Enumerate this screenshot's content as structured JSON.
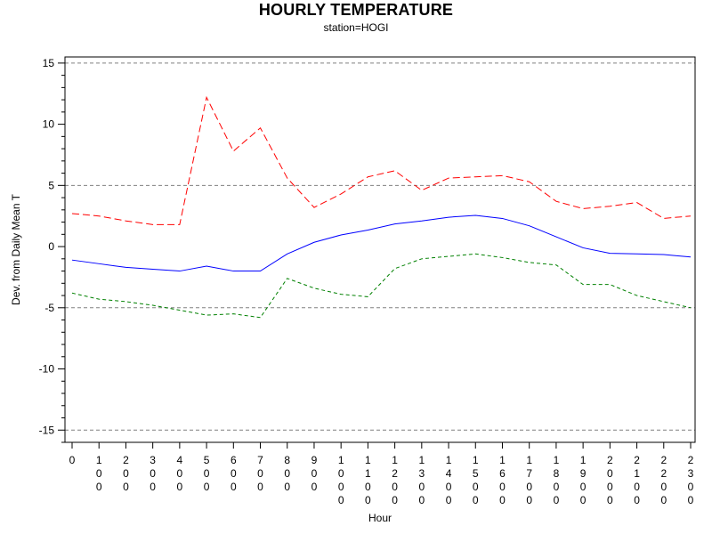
{
  "chart_data": {
    "type": "line",
    "title": "HOURLY TEMPERATURE",
    "subtitle": "station=HOGI",
    "xlabel": "Hour",
    "ylabel": "Dev. from Daily Mean T",
    "x": [
      0,
      100,
      200,
      300,
      400,
      500,
      600,
      700,
      800,
      900,
      1000,
      1100,
      1200,
      1300,
      1400,
      1500,
      1600,
      1700,
      1800,
      1900,
      2000,
      2100,
      2200,
      2300
    ],
    "xtick_labels": [
      "0",
      "100",
      "200",
      "300",
      "400",
      "500",
      "600",
      "700",
      "800",
      "900",
      "1000",
      "1100",
      "1200",
      "1300",
      "1400",
      "1500",
      "1600",
      "1700",
      "1800",
      "1900",
      "2000",
      "2100",
      "2200",
      "2300"
    ],
    "ylim": [
      -16,
      15.5
    ],
    "yticks": [
      -15,
      -10,
      -5,
      0,
      5,
      10,
      15
    ],
    "ytick_labels": [
      "-15",
      "-10",
      "-5",
      "0",
      "5",
      "10",
      "15"
    ],
    "reference_lines": [
      15,
      5,
      -5,
      -15
    ],
    "reference_line_color": "#808080",
    "series": [
      {
        "color": "#ff0000",
        "style": "long-dash",
        "values": [
          2.7,
          2.5,
          2.1,
          1.8,
          1.8,
          12.2,
          7.8,
          9.7,
          5.6,
          3.2,
          4.3,
          5.7,
          6.2,
          4.6,
          5.6,
          5.7,
          5.8,
          5.3,
          3.7,
          3.1,
          3.3,
          3.6,
          2.3,
          2.5
        ]
      },
      {
        "color": "#0000ff",
        "style": "solid",
        "values": [
          -1.1,
          -1.4,
          -1.7,
          -1.85,
          -2.0,
          -1.6,
          -2.0,
          -2.0,
          -0.6,
          0.35,
          0.95,
          1.35,
          1.85,
          2.1,
          2.4,
          2.55,
          2.3,
          1.7,
          0.8,
          -0.1,
          -0.55,
          -0.6,
          -0.65,
          -0.85
        ]
      },
      {
        "color": "#008000",
        "style": "short-dash",
        "values": [
          -3.8,
          -4.3,
          -4.5,
          -4.8,
          -5.2,
          -5.6,
          -5.5,
          -5.8,
          -2.6,
          -3.4,
          -3.9,
          -4.1,
          -1.8,
          -1.0,
          -0.8,
          -0.6,
          -0.9,
          -1.3,
          -1.5,
          -3.1,
          -3.1,
          -4.0,
          -4.5,
          -5.0
        ]
      }
    ],
    "grid": false,
    "legend": "none"
  }
}
